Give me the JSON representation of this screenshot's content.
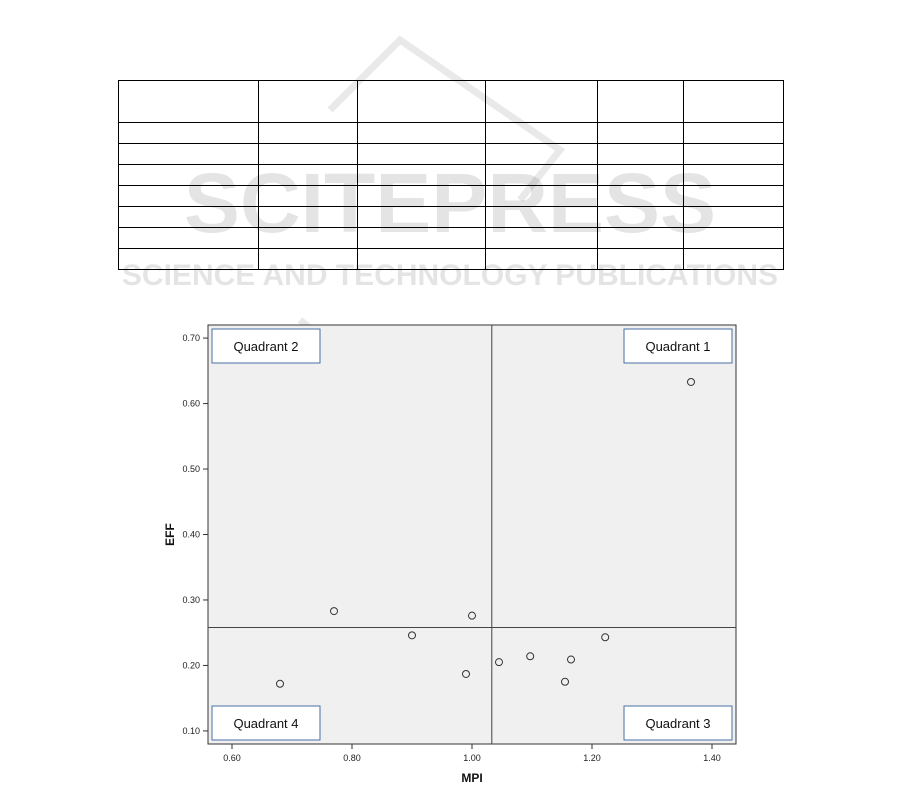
{
  "watermark": {
    "main": "SCITEPRESS",
    "sub": "SCIENCE AND TECHNOLOGY PUBLICATIONS"
  },
  "table": {
    "columns": 6,
    "header_rows": 1,
    "body_rows": 7,
    "cells": []
  },
  "chart_data": {
    "type": "scatter",
    "title": "",
    "xlabel": "MPI",
    "ylabel": "EFF",
    "xlim": [
      0.56,
      1.44
    ],
    "ylim": [
      0.08,
      0.72
    ],
    "xticks": [
      0.6,
      0.8,
      1.0,
      1.2,
      1.4
    ],
    "xtick_labels": [
      "0.60",
      "0.80",
      "1.00",
      "1.20",
      "1.40"
    ],
    "yticks": [
      0.1,
      0.2,
      0.3,
      0.4,
      0.5,
      0.6,
      0.7
    ],
    "ytick_labels": [
      "0.10",
      "0.20",
      "0.30",
      "0.40",
      "0.50",
      "0.60",
      "0.70"
    ],
    "reference_lines": {
      "x": 1.033,
      "y": 0.258
    },
    "grid": false,
    "background": "#f0f0f0",
    "marker": "open-circle",
    "points": [
      {
        "x": 0.68,
        "y": 0.172
      },
      {
        "x": 0.77,
        "y": 0.283
      },
      {
        "x": 0.9,
        "y": 0.246
      },
      {
        "x": 0.99,
        "y": 0.187
      },
      {
        "x": 1.0,
        "y": 0.276
      },
      {
        "x": 1.045,
        "y": 0.205
      },
      {
        "x": 1.097,
        "y": 0.214
      },
      {
        "x": 1.155,
        "y": 0.175
      },
      {
        "x": 1.165,
        "y": 0.209
      },
      {
        "x": 1.222,
        "y": 0.243
      },
      {
        "x": 1.365,
        "y": 0.633
      }
    ],
    "quadrants": [
      {
        "label": "Quadrant 2",
        "position": "top-left"
      },
      {
        "label": "Quadrant 1",
        "position": "top-right"
      },
      {
        "label": "Quadrant 4",
        "position": "bottom-left"
      },
      {
        "label": "Quadrant 3",
        "position": "bottom-right"
      }
    ]
  }
}
